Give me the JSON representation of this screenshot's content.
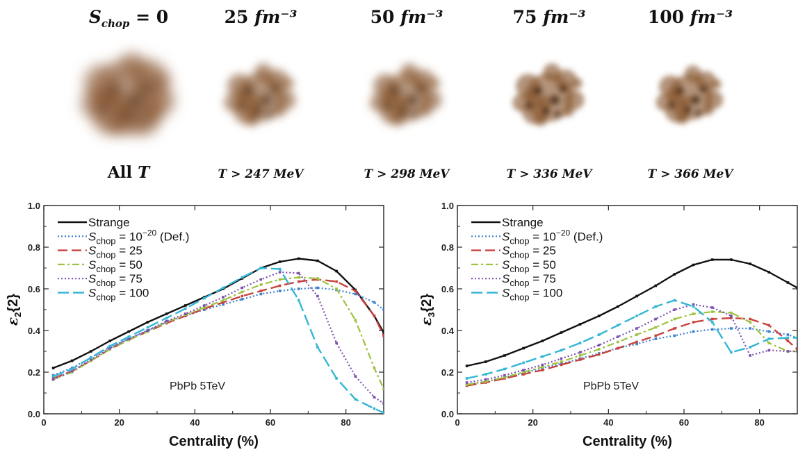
{
  "header": {
    "columns": [
      {
        "title_main": "S",
        "title_sub": "chop",
        "title_rest": " = 0",
        "caption_main": "All ",
        "caption_var": "T",
        "caption_rest": ""
      },
      {
        "title_main": "25 ",
        "title_sub": "",
        "title_rest": "fm⁻³",
        "caption_main": "",
        "caption_var": "T",
        "caption_rest": " > 247 MeV"
      },
      {
        "title_main": "50 ",
        "title_sub": "",
        "title_rest": "fm⁻³",
        "caption_main": "",
        "caption_var": "T",
        "caption_rest": " > 298 MeV"
      },
      {
        "title_main": "75 ",
        "title_sub": "",
        "title_rest": "fm⁻³",
        "caption_main": "",
        "caption_var": "T",
        "caption_rest": " > 336 MeV"
      },
      {
        "title_main": "100 ",
        "title_sub": "",
        "title_rest": "fm⁻³",
        "caption_main": "",
        "caption_var": "T",
        "caption_rest": " > 366 MeV"
      }
    ],
    "blob_color": "#8b5a34"
  },
  "chart_data": [
    {
      "type": "line",
      "xlabel": "Centrality (%)",
      "ylabel_main": "ε",
      "ylabel_sub": "2",
      "ylabel_rest": "{2}",
      "xlim": [
        0,
        90
      ],
      "ylim": [
        0,
        1.0
      ],
      "xticks": [
        0,
        20,
        40,
        60,
        80
      ],
      "yticks": [
        0.0,
        0.2,
        0.4,
        0.6,
        0.8,
        1.0
      ],
      "annotation": "PbPb 5TeV",
      "legend_position": "top-left",
      "x": [
        2.5,
        7.5,
        12.5,
        17.5,
        22.5,
        27.5,
        32.5,
        37.5,
        42.5,
        47.5,
        52.5,
        57.5,
        62.5,
        67.5,
        72.5,
        77.5,
        82.5,
        87.5,
        90
      ],
      "series": [
        {
          "name": "Strange",
          "legend_main": "Strange",
          "legend_sub": "",
          "legend_rest": "",
          "legend_sup": "",
          "legend_tail": "",
          "color": "#111111",
          "dash": "",
          "width": 2.4,
          "values": [
            0.22,
            0.255,
            0.3,
            0.35,
            0.395,
            0.44,
            0.48,
            0.52,
            0.56,
            0.6,
            0.65,
            0.7,
            0.73,
            0.745,
            0.735,
            0.685,
            0.595,
            0.47,
            0.39
          ]
        },
        {
          "name": "Schop = 10^-20 (Def.)",
          "legend_main": "S",
          "legend_sub": "chop",
          "legend_rest": " = 10",
          "legend_sup": "−20",
          "legend_tail": " (Def.)",
          "color": "#3a7fd0",
          "dash": "2,3",
          "width": 2.2,
          "values": [
            0.185,
            0.22,
            0.27,
            0.32,
            0.36,
            0.4,
            0.44,
            0.47,
            0.5,
            0.525,
            0.55,
            0.575,
            0.59,
            0.6,
            0.605,
            0.595,
            0.575,
            0.535,
            0.5
          ]
        },
        {
          "name": "Schop = 25",
          "legend_main": "S",
          "legend_sub": "chop",
          "legend_rest": " = 25",
          "legend_sup": "",
          "legend_tail": "",
          "color": "#c8413c",
          "dash": "14,6",
          "width": 2.4,
          "values": [
            0.17,
            0.205,
            0.255,
            0.31,
            0.355,
            0.395,
            0.435,
            0.47,
            0.505,
            0.535,
            0.565,
            0.59,
            0.615,
            0.635,
            0.645,
            0.635,
            0.59,
            0.47,
            0.375
          ]
        },
        {
          "name": "Schop = 50",
          "legend_main": "S",
          "legend_sub": "chop",
          "legend_rest": " = 50",
          "legend_sup": "",
          "legend_tail": "",
          "color": "#9cc23f",
          "dash": "10,4,3,4",
          "width": 2.2,
          "values": [
            0.165,
            0.2,
            0.255,
            0.31,
            0.355,
            0.395,
            0.44,
            0.475,
            0.51,
            0.545,
            0.585,
            0.62,
            0.645,
            0.655,
            0.65,
            0.6,
            0.45,
            0.22,
            0.12
          ]
        },
        {
          "name": "Schop = 75",
          "legend_main": "S",
          "legend_sub": "chop",
          "legend_rest": " = 75",
          "legend_sup": "",
          "legend_tail": "",
          "color": "#7c4fb0",
          "dash": "2,3",
          "width": 2.2,
          "values": [
            0.165,
            0.205,
            0.26,
            0.315,
            0.36,
            0.4,
            0.445,
            0.48,
            0.52,
            0.56,
            0.605,
            0.645,
            0.68,
            0.675,
            0.565,
            0.34,
            0.18,
            0.08,
            0.05
          ]
        },
        {
          "name": "Schop = 100",
          "legend_main": "S",
          "legend_sub": "chop",
          "legend_rest": " = 100",
          "legend_sup": "",
          "legend_tail": "",
          "color": "#33b6d6",
          "dash": "16,6",
          "width": 2.4,
          "values": [
            0.18,
            0.215,
            0.27,
            0.325,
            0.37,
            0.415,
            0.46,
            0.505,
            0.555,
            0.605,
            0.655,
            0.7,
            0.695,
            0.545,
            0.32,
            0.17,
            0.07,
            0.025,
            0.005
          ]
        }
      ]
    },
    {
      "type": "line",
      "xlabel": "Centrality (%)",
      "ylabel_main": "ε",
      "ylabel_sub": "3",
      "ylabel_rest": "{2}",
      "xlim": [
        0,
        90
      ],
      "ylim": [
        0,
        1.0
      ],
      "xticks": [
        0,
        20,
        40,
        60,
        80
      ],
      "yticks": [
        0.0,
        0.2,
        0.4,
        0.6,
        0.8,
        1.0
      ],
      "annotation": "PbPb 5TeV",
      "legend_position": "top-left",
      "x": [
        2.5,
        7.5,
        12.5,
        17.5,
        22.5,
        27.5,
        32.5,
        37.5,
        42.5,
        47.5,
        52.5,
        57.5,
        62.5,
        67.5,
        72.5,
        77.5,
        82.5,
        87.5,
        90
      ],
      "series": [
        {
          "name": "Strange",
          "legend_main": "Strange",
          "legend_sub": "",
          "legend_rest": "",
          "legend_sup": "",
          "legend_tail": "",
          "color": "#111111",
          "dash": "",
          "width": 2.4,
          "values": [
            0.23,
            0.25,
            0.28,
            0.315,
            0.35,
            0.39,
            0.43,
            0.47,
            0.515,
            0.565,
            0.615,
            0.67,
            0.715,
            0.74,
            0.74,
            0.72,
            0.68,
            0.63,
            0.605
          ]
        },
        {
          "name": "Schop = 10^-20 (Def.)",
          "legend_main": "S",
          "legend_sub": "chop",
          "legend_rest": " = 10",
          "legend_sup": "−20",
          "legend_tail": " (Def.)",
          "color": "#3a7fd0",
          "dash": "2,3",
          "width": 2.2,
          "values": [
            0.14,
            0.155,
            0.175,
            0.195,
            0.22,
            0.24,
            0.265,
            0.29,
            0.315,
            0.335,
            0.36,
            0.375,
            0.395,
            0.405,
            0.41,
            0.41,
            0.395,
            0.38,
            0.365
          ]
        },
        {
          "name": "Schop = 25",
          "legend_main": "S",
          "legend_sub": "chop",
          "legend_rest": " = 25",
          "legend_sup": "",
          "legend_tail": "",
          "color": "#c8413c",
          "dash": "14,6",
          "width": 2.4,
          "values": [
            0.135,
            0.15,
            0.17,
            0.19,
            0.21,
            0.235,
            0.26,
            0.285,
            0.315,
            0.345,
            0.375,
            0.41,
            0.44,
            0.455,
            0.46,
            0.455,
            0.425,
            0.35,
            0.31
          ]
        },
        {
          "name": "Schop = 50",
          "legend_main": "S",
          "legend_sub": "chop",
          "legend_rest": " = 50",
          "legend_sup": "",
          "legend_tail": "",
          "color": "#9cc23f",
          "dash": "10,4,3,4",
          "width": 2.2,
          "values": [
            0.14,
            0.155,
            0.175,
            0.2,
            0.225,
            0.25,
            0.28,
            0.31,
            0.345,
            0.38,
            0.415,
            0.455,
            0.48,
            0.49,
            0.485,
            0.44,
            0.34,
            0.3,
            0.3
          ]
        },
        {
          "name": "Schop = 75",
          "legend_main": "S",
          "legend_sub": "chop",
          "legend_rest": " = 75",
          "legend_sup": "",
          "legend_tail": "",
          "color": "#7c4fb0",
          "dash": "2,3",
          "width": 2.2,
          "values": [
            0.15,
            0.165,
            0.185,
            0.21,
            0.235,
            0.265,
            0.295,
            0.33,
            0.37,
            0.41,
            0.455,
            0.5,
            0.525,
            0.51,
            0.47,
            0.28,
            0.305,
            0.3,
            0.3
          ]
        },
        {
          "name": "Schop = 100",
          "legend_main": "S",
          "legend_sub": "chop",
          "legend_rest": " = 100",
          "legend_sup": "",
          "legend_tail": "",
          "color": "#33b6d6",
          "dash": "16,6",
          "width": 2.4,
          "values": [
            0.17,
            0.19,
            0.215,
            0.245,
            0.275,
            0.305,
            0.34,
            0.38,
            0.425,
            0.47,
            0.515,
            0.545,
            0.515,
            0.44,
            0.295,
            0.32,
            0.36,
            0.365,
            0.365
          ]
        }
      ]
    }
  ]
}
